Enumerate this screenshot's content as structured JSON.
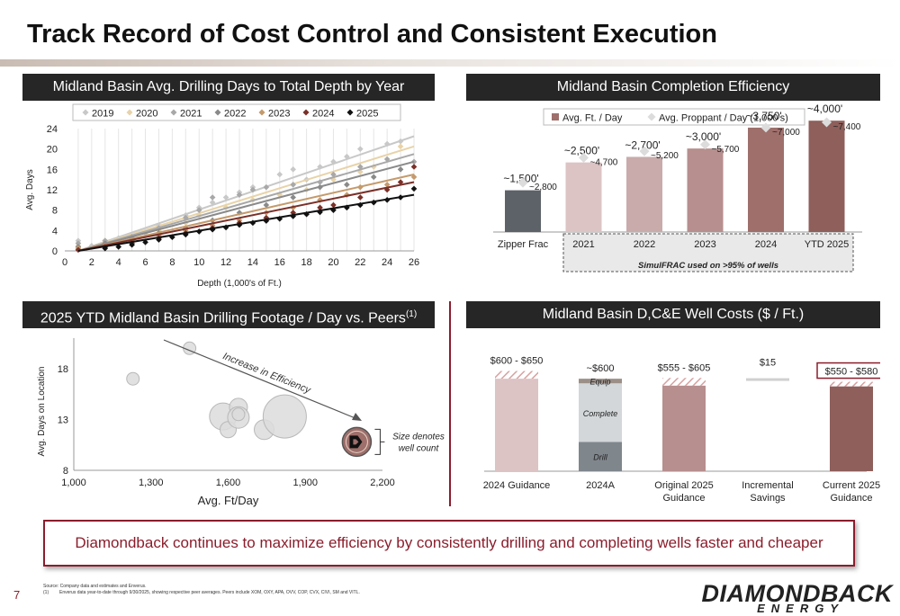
{
  "page": {
    "title": "Track Record of Cost Control and Consistent Execution",
    "callout": "Diamondback continues to maximize efficiency by consistently drilling and completing wells faster and cheaper",
    "page_number": "7",
    "footnote_source": "Source: Company data and estimates and Enverus.",
    "footnote_1_marker": "(1)",
    "footnote_1": "Enverus data year-to-date through 9/30/2025, showing respective peer averages. Peers include XOM, OXY, APA, OVV, COP, CVX, CIVI, SM and VITL.",
    "logo_top": "DIAMONDBACK",
    "logo_bottom": "ENERGY"
  },
  "panels": {
    "drilling_days": "Midland Basin Avg. Drilling Days to Total Depth by Year",
    "completion": "Midland Basin Completion Efficiency",
    "peers": "2025 YTD Midland Basin Drilling Footage / Day vs. Peers",
    "peers_sup": "(1)",
    "costs": "Midland Basin D,C&E Well Costs ($ / Ft.)"
  },
  "chart_data": [
    {
      "type": "scatter",
      "ylabel": "Avg. Days",
      "xlabel": "Depth (1,000's of Ft.)",
      "xlim": [
        0,
        26
      ],
      "ylim": [
        0,
        24
      ],
      "x_ticks": [
        "0",
        "2",
        "4",
        "6",
        "8",
        "10",
        "12",
        "14",
        "16",
        "18",
        "20",
        "22",
        "24",
        "26"
      ],
      "y_ticks": [
        "0",
        "4",
        "8",
        "12",
        "16",
        "20",
        "24"
      ],
      "legend_position": "top",
      "trendlines": true,
      "series": [
        {
          "name": "2019",
          "color": "#c8c8c8",
          "line_end": 22.5,
          "points": [
            [
              1,
              2
            ],
            [
              2,
              1
            ],
            [
              4,
              2.5
            ],
            [
              6,
              3.5
            ],
            [
              7,
              5
            ],
            [
              9,
              7
            ],
            [
              10,
              8.5
            ],
            [
              11,
              9.5
            ],
            [
              12,
              10.5
            ],
            [
              13,
              11.5
            ],
            [
              14,
              12.5
            ],
            [
              16,
              15
            ],
            [
              17,
              16
            ],
            [
              18,
              14
            ],
            [
              19,
              16.5
            ],
            [
              20,
              17.5
            ],
            [
              21,
              18.5
            ],
            [
              22,
              20
            ],
            [
              24,
              21
            ],
            [
              25,
              21.5
            ]
          ]
        },
        {
          "name": "2020",
          "color": "#e8d3a8",
          "line_end": 20.5,
          "points": [
            [
              1,
              1
            ],
            [
              3,
              2
            ],
            [
              5,
              3
            ],
            [
              7,
              4
            ],
            [
              9,
              5.5
            ],
            [
              10,
              7
            ],
            [
              12,
              8.5
            ],
            [
              14,
              10
            ],
            [
              16,
              11
            ],
            [
              18,
              12
            ],
            [
              20,
              14
            ],
            [
              22,
              15.5
            ],
            [
              23,
              16.5
            ],
            [
              25,
              20.5
            ]
          ]
        },
        {
          "name": "2021",
          "color": "#a8a8a8",
          "line_end": 19,
          "points": [
            [
              1,
              1.5
            ],
            [
              3,
              2
            ],
            [
              5,
              2.8
            ],
            [
              7,
              4.5
            ],
            [
              9,
              6.5
            ],
            [
              10,
              8
            ],
            [
              11,
              10.5
            ],
            [
              13,
              11
            ],
            [
              14,
              12
            ],
            [
              15,
              12.5
            ],
            [
              17,
              13
            ],
            [
              19,
              13.5
            ],
            [
              20,
              15
            ],
            [
              22,
              16.5
            ],
            [
              24,
              18
            ],
            [
              26,
              17.5
            ]
          ]
        },
        {
          "name": "2022",
          "color": "#8a8a8a",
          "line_end": 17.5,
          "points": [
            [
              1,
              0.8
            ],
            [
              3,
              1.5
            ],
            [
              5,
              2.5
            ],
            [
              7,
              3.5
            ],
            [
              9,
              4.5
            ],
            [
              11,
              6
            ],
            [
              13,
              7.5
            ],
            [
              15,
              9
            ],
            [
              17,
              10.5
            ],
            [
              19,
              12.5
            ],
            [
              21,
              13
            ],
            [
              23,
              14.5
            ],
            [
              25,
              16
            ]
          ]
        },
        {
          "name": "2023",
          "color": "#c49a6c",
          "line_end": 15,
          "points": [
            [
              1,
              0.5
            ],
            [
              3,
              1
            ],
            [
              5,
              2
            ],
            [
              7,
              3
            ],
            [
              9,
              4
            ],
            [
              11,
              5
            ],
            [
              13,
              6
            ],
            [
              15,
              7.5
            ],
            [
              17,
              8.5
            ],
            [
              19,
              10
            ],
            [
              21,
              11
            ],
            [
              22,
              12.5
            ],
            [
              24,
              13
            ],
            [
              26,
              14.5
            ]
          ]
        },
        {
          "name": "2024",
          "color": "#7a3028",
          "line_end": 13.5,
          "points": [
            [
              1,
              0.2
            ],
            [
              3,
              0.8
            ],
            [
              5,
              1.5
            ],
            [
              7,
              2.5
            ],
            [
              9,
              3.5
            ],
            [
              11,
              4.5
            ],
            [
              13,
              5.5
            ],
            [
              15,
              6.5
            ],
            [
              17,
              7.5
            ],
            [
              19,
              8.5
            ],
            [
              20,
              9
            ],
            [
              22,
              10.5
            ],
            [
              24,
              12
            ],
            [
              25,
              13.5
            ],
            [
              26,
              16.5
            ]
          ]
        },
        {
          "name": "2025",
          "color": "#111111",
          "line_end": 11,
          "points": [
            [
              3,
              0.5
            ],
            [
              4,
              0.8
            ],
            [
              5,
              1.2
            ],
            [
              6,
              1.7
            ],
            [
              7,
              2.2
            ],
            [
              8,
              2.7
            ],
            [
              9,
              3.2
            ],
            [
              10,
              3.8
            ],
            [
              11,
              4.2
            ],
            [
              12,
              4.6
            ],
            [
              13,
              5.1
            ],
            [
              14,
              5.5
            ],
            [
              15,
              5.9
            ],
            [
              16,
              6.3
            ],
            [
              17,
              6.8
            ],
            [
              18,
              7.2
            ],
            [
              19,
              7.6
            ],
            [
              20,
              8
            ],
            [
              21,
              8.5
            ],
            [
              22,
              9
            ],
            [
              23,
              9.5
            ],
            [
              24,
              10
            ],
            [
              25,
              10.5
            ],
            [
              26,
              12.2
            ]
          ]
        }
      ]
    },
    {
      "type": "bar",
      "categories": [
        "Zipper Frac",
        "2021",
        "2022",
        "2023",
        "2024",
        "YTD 2025"
      ],
      "series": [
        {
          "name": "Avg. Ft. / Day",
          "values": [
            1500,
            2500,
            2700,
            3000,
            3750,
            4000
          ],
          "labels": [
            "~1,500'",
            "~2,500'",
            "~2,700'",
            "~3,000'",
            "~3,750'",
            "~4,000'"
          ],
          "colors": [
            "#5c6268",
            "#dcc3c4",
            "#c9abab",
            "#b68f8e",
            "#9e6f6b",
            "#8e5f5b"
          ]
        },
        {
          "name": "Avg. Proppant / Day (1,000's)",
          "values": [
            2800,
            4700,
            5200,
            5700,
            7000,
            7400
          ],
          "labels": [
            "~2,800",
            "~4,700",
            "~5,200",
            "~5,700",
            "~7,000",
            "~7,400"
          ],
          "color": "#dcdcdc"
        }
      ],
      "y_max": 4200,
      "annotation": "SimulFRAC used on >95% of wells",
      "legend_position": "top"
    },
    {
      "type": "scatter",
      "xlabel": "Avg. Ft/Day",
      "ylabel": "Avg. Days on Location",
      "xlim": [
        1000,
        2200
      ],
      "ylim": [
        8,
        21
      ],
      "x_ticks": [
        "1,000",
        "1,300",
        "1,600",
        "1,900",
        "2,200"
      ],
      "y_ticks": [
        "8",
        "13",
        "18"
      ],
      "annotation_arrow": "Increase in Efficiency",
      "size_note": "Size denotes well count",
      "bubbles": [
        {
          "x": 1230,
          "y": 17.0,
          "size": 7
        },
        {
          "x": 1450,
          "y": 20.0,
          "size": 7
        },
        {
          "x": 1580,
          "y": 13.3,
          "size": 15
        },
        {
          "x": 1600,
          "y": 12.0,
          "size": 9
        },
        {
          "x": 1640,
          "y": 14.2,
          "size": 10
        },
        {
          "x": 1640,
          "y": 13.2,
          "size": 12
        },
        {
          "x": 1640,
          "y": 13.5,
          "size": 7
        },
        {
          "x": 1740,
          "y": 12.0,
          "size": 11
        },
        {
          "x": 1820,
          "y": 13.3,
          "size": 24
        }
      ],
      "highlight": {
        "x": 2100,
        "y": 10.8,
        "size": 16,
        "color": "#9e6f6b"
      }
    },
    {
      "type": "bar",
      "categories": [
        "2024 Guidance",
        "2024A",
        "Original 2025\nGuidance",
        "Incremental\nSavings",
        "Current 2025\nGuidance"
      ],
      "labels": [
        "$600 - $650",
        "~$600",
        "$555 - $605",
        "$15",
        "$550 - $580"
      ],
      "y_max": 700,
      "bars": [
        {
          "low": 600,
          "high": 650,
          "color": "#dcc3c4"
        },
        {
          "stack": [
            {
              "name": "Drill",
              "value": 190,
              "color": "#7f868c"
            },
            {
              "name": "Complete",
              "value": 380,
              "color": "#d3d7da"
            },
            {
              "name": "Equip",
              "value": 30,
              "color": "#9b8f88"
            }
          ]
        },
        {
          "low": 555,
          "high": 605,
          "color": "#b68f8e"
        },
        {
          "value": 15,
          "level": 580,
          "color": "#d0d0d0"
        },
        {
          "low": 550,
          "high": 580,
          "color": "#8e5f5b",
          "highlight": true
        }
      ]
    }
  ]
}
